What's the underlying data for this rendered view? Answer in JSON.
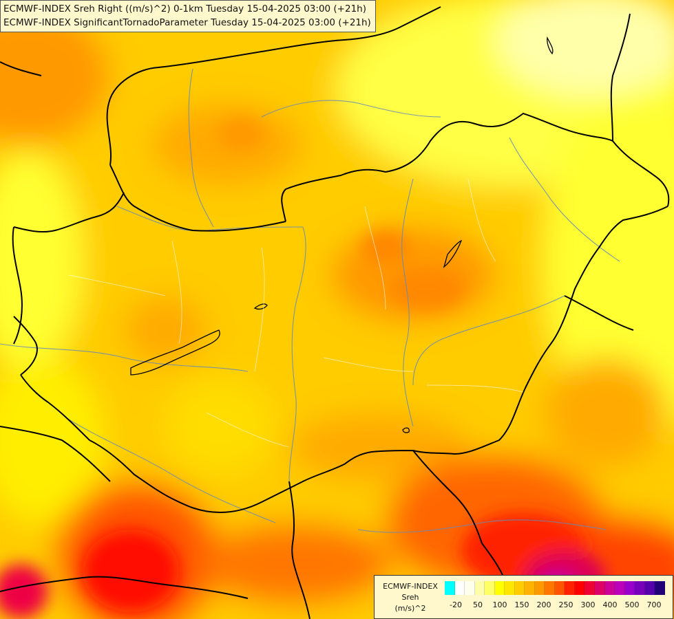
{
  "header": {
    "line1": "ECMWF-INDEX Sreh Right ((m/s)^2) 0-1km Tuesday 15-04-2025 03:00 (+21h)",
    "line2": "ECMWF-INDEX SignificantTornadoParameter Tuesday 15-04-2025 03:00 (+21h)"
  },
  "legend": {
    "model": "ECMWF-INDEX",
    "variable": "Sreh",
    "unit": "(m/s)^2",
    "tick_labels": [
      "-20",
      "50",
      "100",
      "150",
      "200",
      "250",
      "300",
      "400",
      "500",
      "700"
    ],
    "colors": [
      "#00ffff",
      "#ffffff",
      "#ffffee",
      "#ffffaa",
      "#ffff66",
      "#ffff00",
      "#ffe600",
      "#ffcc00",
      "#ffb300",
      "#ff9900",
      "#ff7700",
      "#ff5500",
      "#ff2200",
      "#ff0000",
      "#ee0033",
      "#dd0066",
      "#cc0099",
      "#bb00bb",
      "#9900cc",
      "#7700bb",
      "#5500aa",
      "#220077"
    ]
  },
  "map": {
    "region": "Hungary and surroundings",
    "field_colors": {
      "low": "#ffff33",
      "mid": "#ffcc00",
      "high": "#ff9900",
      "very_high": "#ff3300",
      "extreme": "#cc0099"
    }
  }
}
